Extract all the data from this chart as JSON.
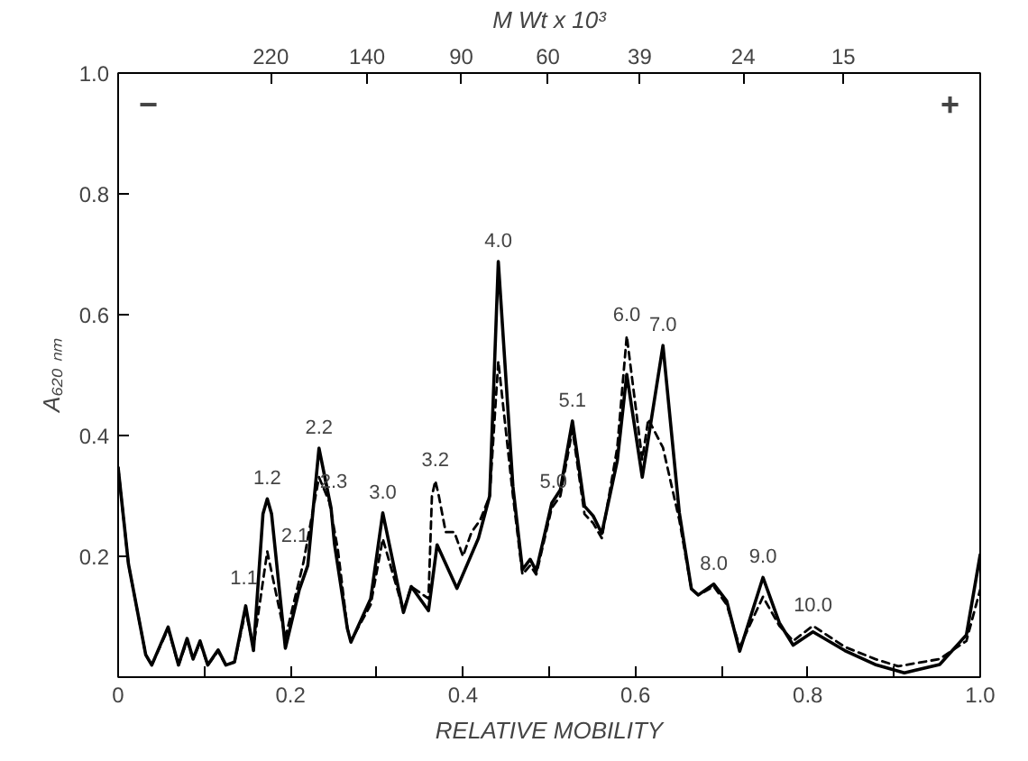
{
  "chart_data": {
    "type": "line",
    "xlabel": "RELATIVE MOBILITY",
    "ylabel": "A₆₂₀ ₙₘ",
    "x2label": "M Wt x 10³",
    "xlim": [
      0,
      1
    ],
    "ylim": [
      0,
      1
    ],
    "xticks": [
      0,
      {
        "value": 0.1,
        "label": null
      },
      {
        "value": 0.2,
        "label": "0.2"
      },
      {
        "value": 0.3,
        "label": null
      },
      {
        "value": 0.4,
        "label": "0.4"
      },
      {
        "value": 0.5,
        "label": null
      },
      {
        "value": 0.6,
        "label": "0.6"
      },
      {
        "value": 0.7,
        "label": null
      },
      {
        "value": 0.8,
        "label": "0.8"
      },
      {
        "value": 0.9,
        "label": null
      },
      {
        "value": 1,
        "label": "1.0"
      }
    ],
    "yticks": [
      {
        "value": 0.2,
        "label": "0.2"
      },
      {
        "value": 0.4,
        "label": "0.4"
      },
      {
        "value": 0.6,
        "label": "0.6"
      },
      {
        "value": 0.8,
        "label": "0.8"
      },
      {
        "value": 1,
        "label": "1.0"
      }
    ],
    "x2lim": [
      450,
      7.9
    ],
    "log": "x2",
    "x2ticks": [
      220,
      140,
      90,
      60,
      39,
      24,
      15
    ],
    "grid": false,
    "series": [
      {
        "color": "#000000",
        "line_style": "solid",
        "x": [
          0,
          0.012,
          0.032,
          0.039,
          0.058,
          0.07,
          0.08,
          0.087,
          0.095,
          0.104,
          0.116,
          0.125,
          0.135,
          0.148,
          0.157,
          0.168,
          0.173,
          0.178,
          0.194,
          0.21,
          0.22,
          0.233,
          0.247,
          0.251,
          0.266,
          0.27,
          0.293,
          0.307,
          0.331,
          0.34,
          0.36,
          0.37,
          0.393,
          0.418,
          0.431,
          0.441,
          0.458,
          0.469,
          0.478,
          0.485,
          0.503,
          0.513,
          0.527,
          0.541,
          0.551,
          0.561,
          0.579,
          0.59,
          0.608,
          0.632,
          0.651,
          0.665,
          0.673,
          0.691,
          0.706,
          0.721,
          0.748,
          0.767,
          0.783,
          0.806,
          0.843,
          0.878,
          0.912,
          0.953,
          0.984,
          1.0
        ],
        "values": [
          0.347,
          0.187,
          0.037,
          0.02,
          0.083,
          0.02,
          0.064,
          0.03,
          0.06,
          0.02,
          0.045,
          0.02,
          0.025,
          0.118,
          0.044,
          0.27,
          0.295,
          0.27,
          0.048,
          0.144,
          0.185,
          0.379,
          0.28,
          0.22,
          0.08,
          0.058,
          0.13,
          0.272,
          0.107,
          0.15,
          0.11,
          0.219,
          0.147,
          0.23,
          0.3,
          0.688,
          0.315,
          0.178,
          0.195,
          0.176,
          0.288,
          0.31,
          0.424,
          0.283,
          0.267,
          0.238,
          0.358,
          0.501,
          0.331,
          0.549,
          0.272,
          0.146,
          0.136,
          0.154,
          0.126,
          0.043,
          0.165,
          0.09,
          0.053,
          0.075,
          0.044,
          0.021,
          0.007,
          0.021,
          0.07,
          0.203
        ]
      },
      {
        "color": "#000000",
        "line_style": "dashed",
        "x": [
          0,
          0.012,
          0.032,
          0.039,
          0.058,
          0.07,
          0.08,
          0.087,
          0.095,
          0.104,
          0.116,
          0.125,
          0.135,
          0.148,
          0.157,
          0.173,
          0.194,
          0.215,
          0.233,
          0.245,
          0.255,
          0.266,
          0.27,
          0.293,
          0.307,
          0.331,
          0.34,
          0.36,
          0.364,
          0.368,
          0.372,
          0.38,
          0.39,
          0.4,
          0.41,
          0.42,
          0.431,
          0.441,
          0.458,
          0.469,
          0.478,
          0.485,
          0.503,
          0.513,
          0.527,
          0.541,
          0.551,
          0.561,
          0.579,
          0.59,
          0.608,
          0.615,
          0.632,
          0.651,
          0.665,
          0.673,
          0.691,
          0.706,
          0.721,
          0.748,
          0.767,
          0.783,
          0.806,
          0.843,
          0.878,
          0.905,
          0.953,
          0.984,
          1.0
        ],
        "values": [
          0.347,
          0.187,
          0.037,
          0.02,
          0.08,
          0.02,
          0.06,
          0.03,
          0.057,
          0.02,
          0.043,
          0.02,
          0.025,
          0.11,
          0.05,
          0.208,
          0.065,
          0.19,
          0.331,
          0.29,
          0.21,
          0.08,
          0.06,
          0.12,
          0.229,
          0.11,
          0.15,
          0.13,
          0.3,
          0.325,
          0.3,
          0.24,
          0.24,
          0.2,
          0.24,
          0.26,
          0.3,
          0.523,
          0.3,
          0.17,
          0.185,
          0.17,
          0.28,
          0.3,
          0.41,
          0.27,
          0.255,
          0.23,
          0.38,
          0.565,
          0.36,
          0.427,
          0.38,
          0.26,
          0.146,
          0.136,
          0.15,
          0.12,
          0.05,
          0.133,
          0.085,
          0.06,
          0.085,
          0.05,
          0.03,
          0.018,
          0.03,
          0.06,
          0.145
        ]
      }
    ],
    "annotations": [
      "−",
      "+",
      {
        "text": "1.1",
        "x": 0.146,
        "y": 0.13
      },
      {
        "text": "1.2",
        "x": 0.173,
        "y": 0.295
      },
      {
        "text": "2.1",
        "x": 0.205,
        "y": 0.2
      },
      {
        "text": "2.2",
        "x": 0.233,
        "y": 0.379
      },
      {
        "text": "2.3",
        "x": 0.25,
        "y": 0.29
      },
      {
        "text": "3.0",
        "x": 0.307,
        "y": 0.272
      },
      {
        "text": "3.2",
        "x": 0.368,
        "y": 0.325
      },
      {
        "text": "4.0",
        "x": 0.441,
        "y": 0.688
      },
      {
        "text": "5.0",
        "x": 0.505,
        "y": 0.29
      },
      {
        "text": "5.1",
        "x": 0.527,
        "y": 0.424
      },
      {
        "text": "6.0",
        "x": 0.59,
        "y": 0.565
      },
      {
        "text": "7.0",
        "x": 0.632,
        "y": 0.549
      },
      {
        "text": "8.0",
        "x": 0.691,
        "y": 0.154
      },
      {
        "text": "9.0",
        "x": 0.748,
        "y": 0.165
      },
      {
        "text": "10.0",
        "x": 0.806,
        "y": 0.085
      }
    ]
  }
}
